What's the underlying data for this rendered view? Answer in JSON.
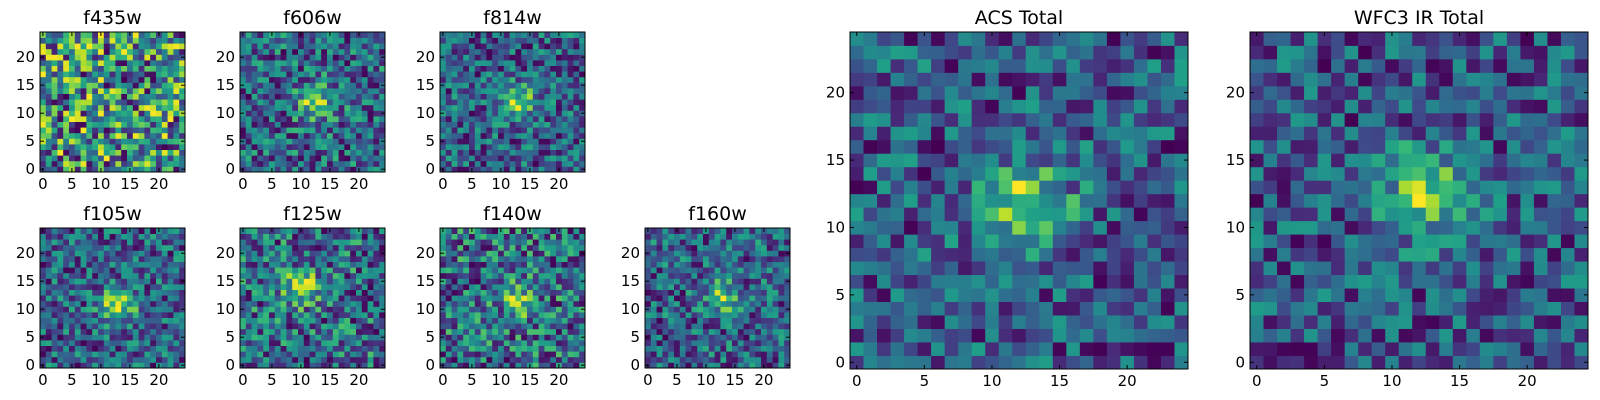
{
  "chart_data": [
    {
      "type": "heatmap",
      "title": "f435w",
      "colormap": "viridis",
      "size": 25,
      "xticks": [
        0,
        5,
        10,
        15,
        20
      ],
      "yticks": [
        0,
        5,
        10,
        15,
        20
      ],
      "xlim": [
        -0.5,
        24.5
      ],
      "ylim": [
        -0.5,
        24.5
      ],
      "blob_strength": 0.0,
      "blob_center": [
        12,
        11
      ],
      "noise": 0.5,
      "seed": 11
    },
    {
      "type": "heatmap",
      "title": "f606w",
      "colormap": "viridis",
      "size": 25,
      "xticks": [
        0,
        5,
        10,
        15,
        20
      ],
      "yticks": [
        0,
        5,
        10,
        15,
        20
      ],
      "xlim": [
        -0.5,
        24.5
      ],
      "ylim": [
        -0.5,
        24.5
      ],
      "blob_strength": 0.6,
      "blob_center": [
        12.5,
        12
      ],
      "noise": 0.42,
      "seed": 23
    },
    {
      "type": "heatmap",
      "title": "f814w",
      "colormap": "viridis",
      "size": 25,
      "xticks": [
        0,
        5,
        10,
        15,
        20
      ],
      "yticks": [
        0,
        5,
        10,
        15,
        20
      ],
      "xlim": [
        -0.5,
        24.5
      ],
      "ylim": [
        -0.5,
        24.5
      ],
      "blob_strength": 0.65,
      "blob_center": [
        13,
        12
      ],
      "noise": 0.42,
      "seed": 37
    },
    {
      "type": "heatmap",
      "title": "f105w",
      "colormap": "viridis",
      "size": 25,
      "xticks": [
        0,
        5,
        10,
        15,
        20
      ],
      "yticks": [
        0,
        5,
        10,
        15,
        20
      ],
      "xlim": [
        -0.5,
        24.5
      ],
      "ylim": [
        -0.5,
        24.5
      ],
      "blob_strength": 0.55,
      "blob_center": [
        13,
        11
      ],
      "noise": 0.32,
      "seed": 41
    },
    {
      "type": "heatmap",
      "title": "f125w",
      "colormap": "viridis",
      "size": 25,
      "xticks": [
        0,
        5,
        10,
        15,
        20
      ],
      "yticks": [
        0,
        5,
        10,
        15,
        20
      ],
      "xlim": [
        -0.5,
        24.5
      ],
      "ylim": [
        -0.5,
        24.5
      ],
      "blob_strength": 0.4,
      "blob_center": [
        10,
        14
      ],
      "noise": 0.32,
      "seed": 53
    },
    {
      "type": "heatmap",
      "title": "f140w",
      "colormap": "viridis",
      "size": 25,
      "xticks": [
        0,
        5,
        10,
        15,
        20
      ],
      "yticks": [
        0,
        5,
        10,
        15,
        20
      ],
      "xlim": [
        -0.5,
        24.5
      ],
      "ylim": [
        -0.5,
        24.5
      ],
      "blob_strength": 0.4,
      "blob_center": [
        13,
        12
      ],
      "noise": 0.42,
      "seed": 67
    },
    {
      "type": "heatmap",
      "title": "f160w",
      "colormap": "viridis",
      "size": 25,
      "xticks": [
        0,
        5,
        10,
        15,
        20
      ],
      "yticks": [
        0,
        5,
        10,
        15,
        20
      ],
      "xlim": [
        -0.5,
        24.5
      ],
      "ylim": [
        -0.5,
        24.5
      ],
      "blob_strength": 0.45,
      "blob_center": [
        13,
        12
      ],
      "noise": 0.36,
      "seed": 79
    },
    {
      "type": "heatmap",
      "title": "ACS Total",
      "colormap": "viridis",
      "size": 25,
      "xticks": [
        0,
        5,
        10,
        15,
        20
      ],
      "yticks": [
        0,
        5,
        10,
        15,
        20
      ],
      "xlim": [
        -0.5,
        24.5
      ],
      "ylim": [
        -0.5,
        24.5
      ],
      "blob_strength": 0.7,
      "blob_center": [
        12.5,
        11.5
      ],
      "noise": 0.34,
      "seed": 83
    },
    {
      "type": "heatmap",
      "title": "WFC3 IR Total",
      "colormap": "viridis",
      "size": 25,
      "xticks": [
        0,
        5,
        10,
        15,
        20
      ],
      "yticks": [
        0,
        5,
        10,
        15,
        20
      ],
      "xlim": [
        -0.5,
        24.5
      ],
      "ylim": [
        -0.5,
        24.5
      ],
      "blob_strength": 0.5,
      "blob_center": [
        12.5,
        12.5
      ],
      "noise": 0.26,
      "seed": 97
    }
  ]
}
